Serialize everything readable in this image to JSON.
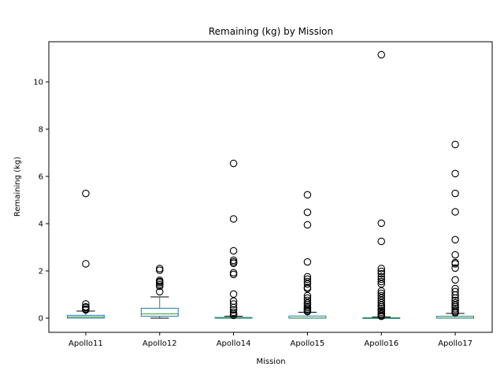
{
  "chart_data": {
    "type": "box",
    "title": "Remaining (kg) by Mission",
    "xlabel": "Mission",
    "ylabel": "Remaining (kg)",
    "ylim": [
      -0.6,
      11.7
    ],
    "yticks": [
      0,
      2,
      4,
      6,
      8,
      10
    ],
    "grid": false,
    "colors": {
      "box": "#1f77b4",
      "median": "#2ca02c",
      "whisker": "#000000",
      "outlier": "#000000"
    },
    "categories": [
      "Apollo11",
      "Apollo12",
      "Apollo14",
      "Apollo15",
      "Apollo16",
      "Apollo17"
    ],
    "boxes": [
      {
        "q1": 0.0,
        "median": 0.05,
        "q3": 0.12,
        "whisker_low": 0.0,
        "whisker_high": 0.3,
        "outliers": [
          5.28,
          2.3,
          0.6,
          0.48,
          0.45,
          0.38,
          0.35
        ]
      },
      {
        "q1": 0.08,
        "median": 0.18,
        "q3": 0.42,
        "whisker_low": 0.0,
        "whisker_high": 0.9,
        "outliers": [
          2.1,
          2.03,
          1.6,
          1.55,
          1.5,
          1.42,
          1.35,
          1.12
        ]
      },
      {
        "q1": 0.0,
        "median": 0.01,
        "q3": 0.03,
        "whisker_low": 0.0,
        "whisker_high": 0.08,
        "outliers": [
          6.55,
          4.2,
          2.85,
          2.45,
          2.38,
          2.32,
          1.92,
          1.85,
          1.02,
          0.72,
          0.6,
          0.45,
          0.35,
          0.25,
          0.18,
          0.12
        ]
      },
      {
        "q1": 0.0,
        "median": 0.01,
        "q3": 0.09,
        "whisker_low": 0.0,
        "whisker_high": 0.25,
        "outliers": [
          5.22,
          4.48,
          3.95,
          2.38,
          1.75,
          1.65,
          1.55,
          1.45,
          1.3,
          1.25,
          0.95,
          0.85,
          0.75,
          0.65,
          0.58,
          0.5,
          0.44,
          0.38,
          0.33,
          0.28
        ]
      },
      {
        "q1": 0.0,
        "median": 0.01,
        "q3": 0.02,
        "whisker_low": 0.0,
        "whisker_high": 0.05,
        "outliers": [
          11.15,
          4.02,
          3.25,
          2.1,
          1.98,
          1.88,
          1.75,
          1.65,
          1.55,
          1.45,
          1.15,
          1.05,
          0.95,
          0.85,
          0.75,
          0.65,
          0.55,
          0.48,
          0.4,
          0.32,
          0.25,
          0.18,
          0.12,
          0.08
        ]
      },
      {
        "q1": 0.0,
        "median": 0.01,
        "q3": 0.08,
        "whisker_low": 0.0,
        "whisker_high": 0.2,
        "outliers": [
          7.35,
          6.12,
          5.28,
          4.5,
          3.32,
          2.68,
          2.35,
          2.3,
          2.12,
          1.62,
          1.25,
          1.12,
          0.98,
          0.85,
          0.75,
          0.65,
          0.55,
          0.48,
          0.4,
          0.33,
          0.27,
          0.22
        ]
      }
    ]
  }
}
